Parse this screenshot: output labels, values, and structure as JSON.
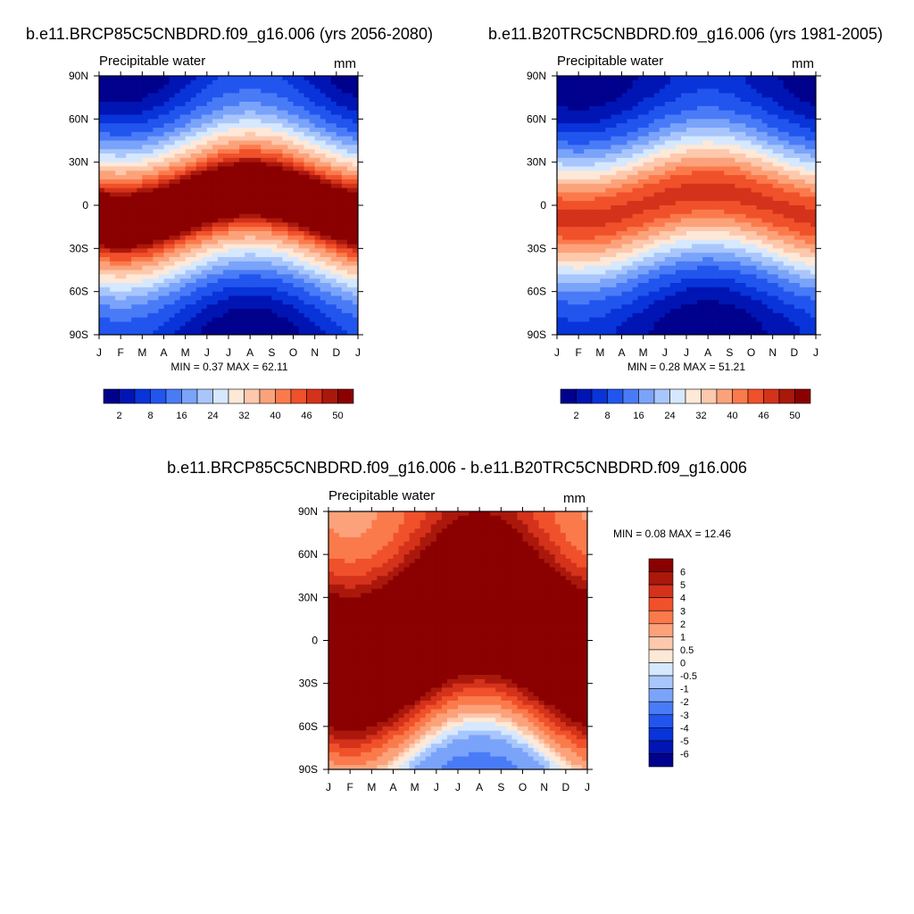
{
  "chart_data": [
    {
      "type": "heatmap",
      "title": "b.e11.BRCP85C5CNBDRD.f09_g16.006 (yrs 2056-2080)",
      "subtitle": "Precipitable water",
      "units": "mm",
      "x_ticks": [
        "J",
        "F",
        "M",
        "A",
        "M",
        "J",
        "J",
        "A",
        "S",
        "O",
        "N",
        "D",
        "J"
      ],
      "y_ticks": [
        "90N",
        "60N",
        "30N",
        "0",
        "30S",
        "60S",
        "90S"
      ],
      "y_range": [
        -90,
        90
      ],
      "stats": {
        "min_label": "MIN =",
        "min": "0.37",
        "max_label": "MAX =",
        "max": "62.11"
      },
      "colorbar": {
        "orientation": "horizontal",
        "levels": [
          2,
          5,
          8,
          12,
          16,
          20,
          24,
          28,
          32,
          36,
          40,
          43,
          46,
          48,
          50
        ],
        "labels": [
          "2",
          "8",
          "16",
          "24",
          "32",
          "40",
          "46",
          "50"
        ],
        "colors": [
          "#00018c",
          "#0015b3",
          "#0834d9",
          "#2155ee",
          "#4a7bf7",
          "#7aa3fa",
          "#a9c6fc",
          "#d6e8fd",
          "#fee8d8",
          "#fdc8ac",
          "#fca27a",
          "#fb7a4c",
          "#f0512a",
          "#d4321a",
          "#aa180c",
          "#8b0000"
        ]
      },
      "profile": {
        "equatorial_peak": 55,
        "peak_lat_amplitude": 10,
        "peak_lat_phase_month": 7,
        "seasonal_amplitude": 4,
        "width_deg": 34,
        "background": 2,
        "hemisphere_bias": 0
      }
    },
    {
      "type": "heatmap",
      "title": "b.e11.B20TRC5CNBDRD.f09_g16.006 (yrs 1981-2005)",
      "subtitle": "Precipitable water",
      "units": "mm",
      "x_ticks": [
        "J",
        "F",
        "M",
        "A",
        "M",
        "J",
        "J",
        "A",
        "S",
        "O",
        "N",
        "D",
        "J"
      ],
      "y_ticks": [
        "90N",
        "60N",
        "30N",
        "0",
        "30S",
        "60S",
        "90S"
      ],
      "y_range": [
        -90,
        90
      ],
      "stats": {
        "min_label": "MIN =",
        "min": "0.28",
        "max_label": "MAX =",
        "max": "51.21"
      },
      "colorbar": {
        "orientation": "horizontal",
        "levels": [
          2,
          5,
          8,
          12,
          16,
          20,
          24,
          28,
          32,
          36,
          40,
          43,
          46,
          48,
          50
        ],
        "labels": [
          "2",
          "8",
          "16",
          "24",
          "32",
          "40",
          "46",
          "50"
        ],
        "colors": [
          "#00018c",
          "#0015b3",
          "#0834d9",
          "#2155ee",
          "#4a7bf7",
          "#7aa3fa",
          "#a9c6fc",
          "#d6e8fd",
          "#fee8d8",
          "#fdc8ac",
          "#fca27a",
          "#fb7a4c",
          "#f0512a",
          "#d4321a",
          "#aa180c",
          "#8b0000"
        ]
      },
      "profile": {
        "equatorial_peak": 45,
        "peak_lat_amplitude": 9,
        "peak_lat_phase_month": 7,
        "seasonal_amplitude": 3,
        "width_deg": 32,
        "background": 1.5,
        "hemisphere_bias": 0
      }
    },
    {
      "type": "heatmap",
      "title": "b.e11.BRCP85C5CNBDRD.f09_g16.006 - b.e11.B20TRC5CNBDRD.f09_g16.006",
      "subtitle": "Precipitable water",
      "units": "mm",
      "x_ticks": [
        "J",
        "F",
        "M",
        "A",
        "M",
        "J",
        "J",
        "A",
        "S",
        "O",
        "N",
        "D",
        "J"
      ],
      "y_ticks": [
        "90N",
        "60N",
        "30N",
        "0",
        "30S",
        "60S",
        "90S"
      ],
      "y_range": [
        -90,
        90
      ],
      "stats": {
        "min_label": "MIN =",
        "min": "0.08",
        "max_label": "MAX =",
        "max": "12.46"
      },
      "colorbar": {
        "orientation": "vertical",
        "levels": [
          -6,
          -5,
          -4,
          -3,
          -2,
          -1,
          -0.5,
          0,
          0.5,
          1,
          2,
          3,
          4,
          5,
          6
        ],
        "labels": [
          "6",
          "5",
          "4",
          "3",
          "2",
          "1",
          "0.5",
          "0",
          "-0.5",
          "-1",
          "-2",
          "-3",
          "-4",
          "-5",
          "-6"
        ],
        "colors": [
          "#00018c",
          "#0015b3",
          "#0834d9",
          "#2155ee",
          "#4a7bf7",
          "#7aa3fa",
          "#a9c6fc",
          "#d6e8fd",
          "#fee8d8",
          "#fdc8ac",
          "#fca27a",
          "#fb7a4c",
          "#f0512a",
          "#d4321a",
          "#aa180c",
          "#8b0000"
        ]
      },
      "profile": {
        "equatorial_peak": 12,
        "peak_lat_amplitude": 20,
        "peak_lat_phase_month": 7,
        "seasonal_amplitude": 1,
        "width_deg": 40,
        "background": 0.2,
        "hemisphere_bias": 2.2
      }
    }
  ]
}
